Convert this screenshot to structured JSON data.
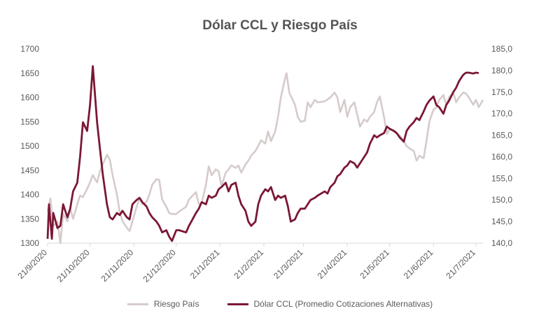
{
  "chart_data": {
    "type": "line",
    "title": "Dólar CCL y Riesgo País",
    "legend_position": "bottom",
    "grid": false,
    "colors": {
      "riesgo": "#d6cbcb",
      "ccl": "#7b1734"
    },
    "x_ticks": [
      "21/9/2020",
      "21/10/2020",
      "21/11/2020",
      "21/12/2020",
      "21/1/2021",
      "21/2/2021",
      "21/3/2021",
      "21/4/2021",
      "21/5/2021",
      "21/6/2021",
      "21/7/2021"
    ],
    "x_range": [
      "2020-09-21",
      "2021-07-26"
    ],
    "y_left": {
      "range": [
        1300,
        1700
      ],
      "ticks": [
        "1300",
        "1350",
        "1400",
        "1450",
        "1500",
        "1550",
        "1600",
        "1650",
        "1700"
      ]
    },
    "y_right": {
      "range": [
        140,
        185
      ],
      "ticks": [
        "140,0",
        "145,0",
        "150,0",
        "155,0",
        "160,0",
        "165,0",
        "170,0",
        "175,0",
        "180,0",
        "185,0"
      ]
    },
    "series": [
      {
        "name": "Riesgo País",
        "axis": "left",
        "points": [
          [
            "2020-09-21",
            1365
          ],
          [
            "2020-09-23",
            1392
          ],
          [
            "2020-09-25",
            1335
          ],
          [
            "2020-09-28",
            1345
          ],
          [
            "2020-09-30",
            1300
          ],
          [
            "2020-10-02",
            1360
          ],
          [
            "2020-10-05",
            1345
          ],
          [
            "2020-10-07",
            1372
          ],
          [
            "2020-10-09",
            1350
          ],
          [
            "2020-10-12",
            1380
          ],
          [
            "2020-10-14",
            1398
          ],
          [
            "2020-10-16",
            1395
          ],
          [
            "2020-10-19",
            1412
          ],
          [
            "2020-10-21",
            1425
          ],
          [
            "2020-10-23",
            1440
          ],
          [
            "2020-10-26",
            1425
          ],
          [
            "2020-10-28",
            1448
          ],
          [
            "2020-10-30",
            1462
          ],
          [
            "2020-11-02",
            1482
          ],
          [
            "2020-11-04",
            1472
          ],
          [
            "2020-11-06",
            1440
          ],
          [
            "2020-11-09",
            1400
          ],
          [
            "2020-11-11",
            1365
          ],
          [
            "2020-11-13",
            1345
          ],
          [
            "2020-11-16",
            1332
          ],
          [
            "2020-11-18",
            1325
          ],
          [
            "2020-11-20",
            1345
          ],
          [
            "2020-11-23",
            1375
          ],
          [
            "2020-11-25",
            1392
          ],
          [
            "2020-11-27",
            1380
          ],
          [
            "2020-11-30",
            1385
          ],
          [
            "2020-12-02",
            1400
          ],
          [
            "2020-12-04",
            1420
          ],
          [
            "2020-12-07",
            1432
          ],
          [
            "2020-12-09",
            1430
          ],
          [
            "2020-12-11",
            1390
          ],
          [
            "2020-12-14",
            1375
          ],
          [
            "2020-12-16",
            1362
          ],
          [
            "2020-12-18",
            1360
          ],
          [
            "2020-12-21",
            1360
          ],
          [
            "2020-12-23",
            1365
          ],
          [
            "2020-12-28",
            1375
          ],
          [
            "2020-12-30",
            1390
          ],
          [
            "2021-01-04",
            1405
          ],
          [
            "2021-01-06",
            1380
          ],
          [
            "2021-01-08",
            1382
          ],
          [
            "2021-01-11",
            1420
          ],
          [
            "2021-01-13",
            1458
          ],
          [
            "2021-01-15",
            1440
          ],
          [
            "2021-01-18",
            1452
          ],
          [
            "2021-01-20",
            1448
          ],
          [
            "2021-01-22",
            1418
          ],
          [
            "2021-01-25",
            1445
          ],
          [
            "2021-01-27",
            1452
          ],
          [
            "2021-01-29",
            1460
          ],
          [
            "2021-02-01",
            1455
          ],
          [
            "2021-02-03",
            1460
          ],
          [
            "2021-02-05",
            1445
          ],
          [
            "2021-02-08",
            1462
          ],
          [
            "2021-02-10",
            1470
          ],
          [
            "2021-02-12",
            1480
          ],
          [
            "2021-02-15",
            1490
          ],
          [
            "2021-02-17",
            1500
          ],
          [
            "2021-02-19",
            1512
          ],
          [
            "2021-02-22",
            1505
          ],
          [
            "2021-02-24",
            1530
          ],
          [
            "2021-02-26",
            1510
          ],
          [
            "2021-03-01",
            1530
          ],
          [
            "2021-03-03",
            1560
          ],
          [
            "2021-03-05",
            1600
          ],
          [
            "2021-03-08",
            1640
          ],
          [
            "2021-03-09",
            1650
          ],
          [
            "2021-03-11",
            1610
          ],
          [
            "2021-03-15",
            1585
          ],
          [
            "2021-03-17",
            1560
          ],
          [
            "2021-03-19",
            1550
          ],
          [
            "2021-03-22",
            1552
          ],
          [
            "2021-03-24",
            1590
          ],
          [
            "2021-03-26",
            1580
          ],
          [
            "2021-03-29",
            1595
          ],
          [
            "2021-03-31",
            1590
          ],
          [
            "2021-04-05",
            1592
          ],
          [
            "2021-04-07",
            1596
          ],
          [
            "2021-04-09",
            1600
          ],
          [
            "2021-04-12",
            1610
          ],
          [
            "2021-04-14",
            1600
          ],
          [
            "2021-04-16",
            1570
          ],
          [
            "2021-04-19",
            1595
          ],
          [
            "2021-04-21",
            1560
          ],
          [
            "2021-04-23",
            1580
          ],
          [
            "2021-04-26",
            1590
          ],
          [
            "2021-04-28",
            1565
          ],
          [
            "2021-04-30",
            1540
          ],
          [
            "2021-05-03",
            1555
          ],
          [
            "2021-05-05",
            1550
          ],
          [
            "2021-05-07",
            1560
          ],
          [
            "2021-05-10",
            1570
          ],
          [
            "2021-05-12",
            1590
          ],
          [
            "2021-05-14",
            1602
          ],
          [
            "2021-05-17",
            1560
          ],
          [
            "2021-05-19",
            1525
          ],
          [
            "2021-05-21",
            1535
          ],
          [
            "2021-05-24",
            1530
          ],
          [
            "2021-05-26",
            1525
          ],
          [
            "2021-05-28",
            1522
          ],
          [
            "2021-05-31",
            1510
          ],
          [
            "2021-06-02",
            1500
          ],
          [
            "2021-06-04",
            1495
          ],
          [
            "2021-06-07",
            1490
          ],
          [
            "2021-06-09",
            1470
          ],
          [
            "2021-06-11",
            1480
          ],
          [
            "2021-06-14",
            1475
          ],
          [
            "2021-06-16",
            1510
          ],
          [
            "2021-06-18",
            1550
          ],
          [
            "2021-06-21",
            1575
          ],
          [
            "2021-06-23",
            1580
          ],
          [
            "2021-06-25",
            1595
          ],
          [
            "2021-06-28",
            1605
          ],
          [
            "2021-06-30",
            1585
          ],
          [
            "2021-07-02",
            1600
          ],
          [
            "2021-07-05",
            1610
          ],
          [
            "2021-07-07",
            1590
          ],
          [
            "2021-07-09",
            1600
          ],
          [
            "2021-07-12",
            1610
          ],
          [
            "2021-07-14",
            1608
          ],
          [
            "2021-07-16",
            1600
          ],
          [
            "2021-07-19",
            1585
          ],
          [
            "2021-07-21",
            1595
          ],
          [
            "2021-07-23",
            1580
          ],
          [
            "2021-07-26",
            1595
          ]
        ]
      },
      {
        "name": "Dólar CCL (Promedio Cotizaciones Alternativas)",
        "axis": "right",
        "points": [
          [
            "2020-09-21",
            141.0
          ],
          [
            "2020-09-22",
            149.0
          ],
          [
            "2020-09-24",
            141.0
          ],
          [
            "2020-09-25",
            147.0
          ],
          [
            "2020-09-28",
            143.5
          ],
          [
            "2020-09-30",
            144.0
          ],
          [
            "2020-10-02",
            149.0
          ],
          [
            "2020-10-05",
            146.0
          ],
          [
            "2020-10-07",
            148.0
          ],
          [
            "2020-10-09",
            152.0
          ],
          [
            "2020-10-12",
            154.0
          ],
          [
            "2020-10-14",
            160.0
          ],
          [
            "2020-10-16",
            168.0
          ],
          [
            "2020-10-19",
            166.0
          ],
          [
            "2020-10-21",
            172.0
          ],
          [
            "2020-10-23",
            181.0
          ],
          [
            "2020-10-26",
            168.0
          ],
          [
            "2020-10-28",
            162.0
          ],
          [
            "2020-10-30",
            156.0
          ],
          [
            "2020-11-02",
            149.0
          ],
          [
            "2020-11-04",
            146.0
          ],
          [
            "2020-11-06",
            145.5
          ],
          [
            "2020-11-09",
            147.0
          ],
          [
            "2020-11-11",
            146.5
          ],
          [
            "2020-11-13",
            147.5
          ],
          [
            "2020-11-16",
            146.0
          ],
          [
            "2020-11-18",
            145.5
          ],
          [
            "2020-11-20",
            149.0
          ],
          [
            "2020-11-23",
            150.0
          ],
          [
            "2020-11-25",
            150.5
          ],
          [
            "2020-11-27",
            149.5
          ],
          [
            "2020-11-30",
            148.5
          ],
          [
            "2020-12-02",
            147.0
          ],
          [
            "2020-12-04",
            146.0
          ],
          [
            "2020-12-07",
            145.0
          ],
          [
            "2020-12-09",
            144.0
          ],
          [
            "2020-12-11",
            142.5
          ],
          [
            "2020-12-14",
            143.0
          ],
          [
            "2020-12-16",
            141.5
          ],
          [
            "2020-12-18",
            140.5
          ],
          [
            "2020-12-21",
            143.0
          ],
          [
            "2020-12-23",
            143.0
          ],
          [
            "2020-12-28",
            142.5
          ],
          [
            "2020-12-30",
            144.0
          ],
          [
            "2021-01-04",
            147.0
          ],
          [
            "2021-01-06",
            148.0
          ],
          [
            "2021-01-08",
            149.5
          ],
          [
            "2021-01-11",
            149.0
          ],
          [
            "2021-01-13",
            151.0
          ],
          [
            "2021-01-15",
            150.5
          ],
          [
            "2021-01-18",
            151.0
          ],
          [
            "2021-01-20",
            152.5
          ],
          [
            "2021-01-22",
            153.0
          ],
          [
            "2021-01-25",
            154.0
          ],
          [
            "2021-01-27",
            152.0
          ],
          [
            "2021-01-29",
            153.5
          ],
          [
            "2021-02-01",
            154.0
          ],
          [
            "2021-02-03",
            151.0
          ],
          [
            "2021-02-05",
            149.0
          ],
          [
            "2021-02-08",
            147.5
          ],
          [
            "2021-02-10",
            145.0
          ],
          [
            "2021-02-12",
            144.0
          ],
          [
            "2021-02-15",
            145.0
          ],
          [
            "2021-02-17",
            149.0
          ],
          [
            "2021-02-19",
            151.0
          ],
          [
            "2021-02-22",
            152.5
          ],
          [
            "2021-02-24",
            152.0
          ],
          [
            "2021-02-26",
            153.0
          ],
          [
            "2021-03-01",
            150.0
          ],
          [
            "2021-03-03",
            151.0
          ],
          [
            "2021-03-05",
            150.5
          ],
          [
            "2021-03-08",
            151.0
          ],
          [
            "2021-03-10",
            148.5
          ],
          [
            "2021-03-12",
            145.0
          ],
          [
            "2021-03-15",
            145.5
          ],
          [
            "2021-03-17",
            147.0
          ],
          [
            "2021-03-19",
            148.0
          ],
          [
            "2021-03-22",
            148.0
          ],
          [
            "2021-03-24",
            149.0
          ],
          [
            "2021-03-26",
            150.0
          ],
          [
            "2021-03-29",
            150.5
          ],
          [
            "2021-03-31",
            151.0
          ],
          [
            "2021-04-05",
            152.0
          ],
          [
            "2021-04-07",
            151.5
          ],
          [
            "2021-04-09",
            153.0
          ],
          [
            "2021-04-12",
            154.0
          ],
          [
            "2021-04-14",
            155.5
          ],
          [
            "2021-04-16",
            156.0
          ],
          [
            "2021-04-19",
            157.5
          ],
          [
            "2021-04-21",
            158.0
          ],
          [
            "2021-04-23",
            159.0
          ],
          [
            "2021-04-26",
            158.5
          ],
          [
            "2021-04-28",
            157.5
          ],
          [
            "2021-04-30",
            158.5
          ],
          [
            "2021-05-03",
            160.0
          ],
          [
            "2021-05-05",
            161.0
          ],
          [
            "2021-05-07",
            163.0
          ],
          [
            "2021-05-10",
            165.0
          ],
          [
            "2021-05-12",
            164.5
          ],
          [
            "2021-05-14",
            165.0
          ],
          [
            "2021-05-17",
            165.5
          ],
          [
            "2021-05-19",
            167.0
          ],
          [
            "2021-05-21",
            166.5
          ],
          [
            "2021-05-24",
            166.0
          ],
          [
            "2021-05-26",
            165.5
          ],
          [
            "2021-05-28",
            164.5
          ],
          [
            "2021-05-31",
            163.5
          ],
          [
            "2021-06-02",
            166.0
          ],
          [
            "2021-06-04",
            167.0
          ],
          [
            "2021-06-07",
            168.0
          ],
          [
            "2021-06-09",
            169.0
          ],
          [
            "2021-06-11",
            168.5
          ],
          [
            "2021-06-14",
            170.5
          ],
          [
            "2021-06-16",
            172.0
          ],
          [
            "2021-06-18",
            173.0
          ],
          [
            "2021-06-21",
            174.0
          ],
          [
            "2021-06-23",
            172.0
          ],
          [
            "2021-06-25",
            171.5
          ],
          [
            "2021-06-28",
            170.0
          ],
          [
            "2021-06-30",
            172.0
          ],
          [
            "2021-07-02",
            173.0
          ],
          [
            "2021-07-05",
            175.0
          ],
          [
            "2021-07-07",
            176.0
          ],
          [
            "2021-07-09",
            177.5
          ],
          [
            "2021-07-12",
            179.0
          ],
          [
            "2021-07-14",
            179.5
          ],
          [
            "2021-07-16",
            179.5
          ],
          [
            "2021-07-19",
            179.3
          ],
          [
            "2021-07-21",
            179.5
          ],
          [
            "2021-07-23",
            179.4
          ]
        ]
      }
    ]
  }
}
